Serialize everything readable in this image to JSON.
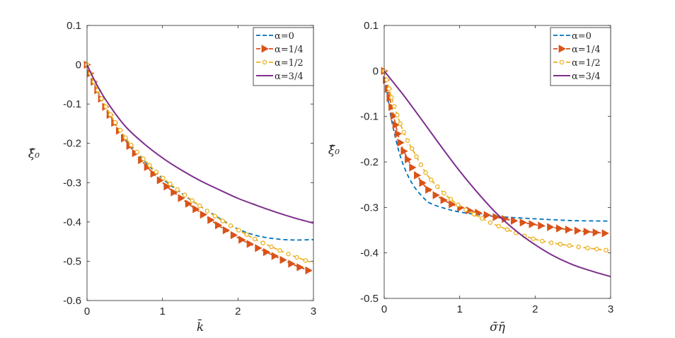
{
  "chart_data": [
    {
      "type": "line",
      "xlabel": "k̄",
      "ylabel": "ξ̂₀",
      "xlim": [
        0,
        3
      ],
      "ylim": [
        -0.6,
        0.1
      ],
      "xticks": [
        "0",
        "1",
        "2",
        "3"
      ],
      "yticks": [
        "0.1",
        "0",
        "-0.1",
        "-0.2",
        "-0.3",
        "-0.4",
        "-0.5",
        "-0.6"
      ],
      "legend_position": "top-right",
      "series": [
        {
          "name": "α=0",
          "color": "#0072BD",
          "style": "dashed",
          "marker": "none",
          "x": [
            0,
            0.1,
            0.25,
            0.5,
            0.75,
            1,
            1.25,
            1.5,
            1.75,
            2,
            2.25,
            2.5,
            2.75,
            3
          ],
          "y": [
            0,
            -0.05,
            -0.11,
            -0.185,
            -0.243,
            -0.29,
            -0.327,
            -0.36,
            -0.39,
            -0.418,
            -0.435,
            -0.443,
            -0.446,
            -0.445
          ]
        },
        {
          "name": "α=1/4",
          "color": "#D95319",
          "style": "dashed",
          "marker": "triangle",
          "x": [
            0,
            0.1,
            0.25,
            0.5,
            0.75,
            1,
            1.25,
            1.5,
            1.75,
            2,
            2.25,
            2.5,
            2.75,
            3
          ],
          "y": [
            0,
            -0.048,
            -0.11,
            -0.19,
            -0.25,
            -0.3,
            -0.34,
            -0.376,
            -0.41,
            -0.44,
            -0.465,
            -0.488,
            -0.51,
            -0.528
          ]
        },
        {
          "name": "α=1/2",
          "color": "#EDB120",
          "style": "dashed",
          "marker": "circle",
          "x": [
            0,
            0.1,
            0.25,
            0.5,
            0.75,
            1,
            1.25,
            1.5,
            1.75,
            2,
            2.25,
            2.5,
            2.75,
            3
          ],
          "y": [
            0,
            -0.047,
            -0.107,
            -0.183,
            -0.24,
            -0.287,
            -0.325,
            -0.36,
            -0.392,
            -0.42,
            -0.446,
            -0.468,
            -0.488,
            -0.505
          ]
        },
        {
          "name": "α=3/4",
          "color": "#7E2F8E",
          "style": "solid",
          "marker": "none",
          "x": [
            0,
            0.1,
            0.25,
            0.5,
            0.75,
            1,
            1.25,
            1.5,
            1.75,
            2,
            2.25,
            2.5,
            2.75,
            3
          ],
          "y": [
            0,
            -0.04,
            -0.09,
            -0.155,
            -0.2,
            -0.237,
            -0.268,
            -0.295,
            -0.318,
            -0.34,
            -0.358,
            -0.375,
            -0.39,
            -0.403
          ]
        }
      ]
    },
    {
      "type": "line",
      "xlabel": "σ̄η̄",
      "ylabel": "ξ̂₀",
      "xlim": [
        0,
        3
      ],
      "ylim": [
        -0.5,
        0.1
      ],
      "xticks": [
        "0",
        "1",
        "2",
        "3"
      ],
      "yticks": [
        "0.1",
        "0",
        "-0.1",
        "-0.2",
        "-0.3",
        "-0.4",
        "-0.5"
      ],
      "legend_position": "top-right",
      "series": [
        {
          "name": "α=0",
          "color": "#0072BD",
          "style": "dashed",
          "marker": "none",
          "x": [
            0,
            0.05,
            0.1,
            0.2,
            0.3,
            0.4,
            0.5,
            0.6,
            0.8,
            1,
            1.25,
            1.5,
            2,
            2.5,
            3
          ],
          "y": [
            0,
            -0.06,
            -0.11,
            -0.18,
            -0.225,
            -0.255,
            -0.275,
            -0.29,
            -0.302,
            -0.31,
            -0.316,
            -0.32,
            -0.325,
            -0.329,
            -0.33
          ]
        },
        {
          "name": "α=1/4",
          "color": "#D95319",
          "style": "dashed",
          "marker": "triangle",
          "x": [
            0,
            0.05,
            0.1,
            0.2,
            0.3,
            0.4,
            0.5,
            0.6,
            0.8,
            1,
            1.25,
            1.5,
            2,
            2.5,
            3
          ],
          "y": [
            0,
            -0.04,
            -0.08,
            -0.15,
            -0.19,
            -0.22,
            -0.245,
            -0.263,
            -0.285,
            -0.3,
            -0.312,
            -0.322,
            -0.338,
            -0.35,
            -0.358
          ]
        },
        {
          "name": "α=1/2",
          "color": "#EDB120",
          "style": "dashed",
          "marker": "circle",
          "x": [
            0,
            0.05,
            0.1,
            0.2,
            0.3,
            0.4,
            0.5,
            0.6,
            0.8,
            1,
            1.25,
            1.5,
            2,
            2.5,
            3
          ],
          "y": [
            0,
            -0.03,
            -0.06,
            -0.11,
            -0.15,
            -0.18,
            -0.21,
            -0.235,
            -0.27,
            -0.297,
            -0.32,
            -0.34,
            -0.37,
            -0.385,
            -0.395
          ]
        },
        {
          "name": "α=3/4",
          "color": "#7E2F8E",
          "style": "solid",
          "marker": "none",
          "x": [
            0,
            0.25,
            0.5,
            0.75,
            1,
            1.25,
            1.5,
            1.75,
            2,
            2.25,
            2.5,
            2.75,
            3
          ],
          "y": [
            0,
            -0.052,
            -0.108,
            -0.165,
            -0.22,
            -0.27,
            -0.315,
            -0.352,
            -0.382,
            -0.407,
            -0.426,
            -0.44,
            -0.452
          ]
        }
      ]
    }
  ]
}
